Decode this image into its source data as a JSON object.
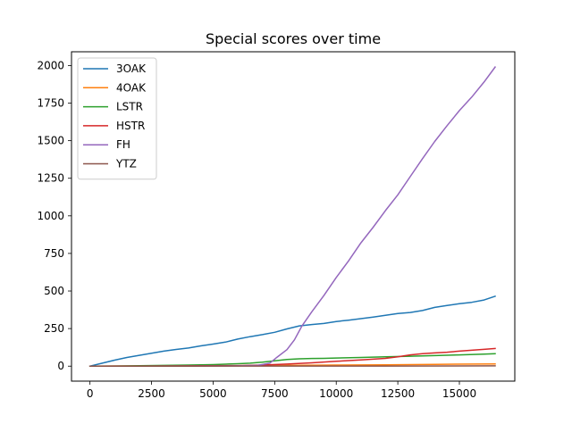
{
  "chart_data": {
    "type": "line",
    "title": "Special scores over time",
    "xlabel": "",
    "ylabel": "",
    "xlim": [
      -750,
      17250
    ],
    "ylim": [
      -99.6,
      2091.6
    ],
    "xticks": [
      0,
      2500,
      5000,
      7500,
      10000,
      12500,
      15000
    ],
    "xtick_labels": [
      "0",
      "2500",
      "5000",
      "7500",
      "10000",
      "12500",
      "15000"
    ],
    "yticks": [
      0,
      250,
      500,
      750,
      1000,
      1250,
      1500,
      1750,
      2000
    ],
    "ytick_labels": [
      "0",
      "250",
      "500",
      "750",
      "1000",
      "1250",
      "1500",
      "1750",
      "2000"
    ],
    "grid": false,
    "legend_position": "upper-left",
    "series": [
      {
        "name": "3OAK",
        "color": "#1f77b4",
        "x": [
          0,
          500,
          1000,
          1500,
          2000,
          2500,
          3000,
          3500,
          4000,
          4500,
          5000,
          5500,
          6000,
          6500,
          7000,
          7500,
          8000,
          8500,
          9000,
          9500,
          10000,
          10500,
          11000,
          11500,
          12000,
          12500,
          13000,
          13500,
          14000,
          14500,
          15000,
          15500,
          16000,
          16450
        ],
        "values": [
          0,
          20,
          40,
          58,
          72,
          86,
          100,
          111,
          121,
          135,
          147,
          160,
          180,
          196,
          210,
          225,
          248,
          268,
          277,
          284,
          297,
          306,
          316,
          327,
          338,
          350,
          357,
          370,
          391,
          404,
          415,
          425,
          440,
          465
        ]
      },
      {
        "name": "4OAK",
        "color": "#ff7f0e",
        "x": [
          0,
          2000,
          4000,
          6000,
          8000,
          10000,
          12000,
          14000,
          16450
        ],
        "values": [
          0,
          1,
          2,
          3,
          5,
          7,
          9,
          12,
          15
        ]
      },
      {
        "name": "LSTR",
        "color": "#2ca02c",
        "x": [
          0,
          1000,
          2000,
          3000,
          4000,
          5000,
          5500,
          6000,
          6500,
          7000,
          7500,
          8000,
          8500,
          9000,
          9500,
          10000,
          11000,
          12000,
          13000,
          14000,
          15000,
          16000,
          16450
        ],
        "values": [
          0,
          1,
          3,
          5,
          7,
          10,
          13,
          16,
          20,
          26,
          35,
          44,
          49,
          51,
          52,
          54,
          58,
          62,
          66,
          70,
          75,
          80,
          83
        ]
      },
      {
        "name": "HSTR",
        "color": "#d62728",
        "x": [
          0,
          2000,
          4000,
          6000,
          7000,
          8000,
          9000,
          10000,
          11000,
          12000,
          12500,
          13000,
          13500,
          14000,
          14500,
          15000,
          15500,
          16000,
          16450
        ],
        "values": [
          0,
          1,
          2,
          4,
          7,
          14,
          22,
          32,
          42,
          52,
          62,
          75,
          83,
          88,
          93,
          100,
          106,
          112,
          118
        ]
      },
      {
        "name": "FH",
        "color": "#9467bd",
        "x": [
          0,
          2000,
          4000,
          6000,
          6800,
          7300,
          7600,
          8000,
          8300,
          8600,
          9000,
          9500,
          10000,
          10500,
          11000,
          11500,
          12000,
          12500,
          13000,
          13500,
          14000,
          14500,
          15000,
          15500,
          16000,
          16450
        ],
        "values": [
          0,
          0,
          1,
          2,
          5,
          20,
          60,
          110,
          175,
          265,
          360,
          470,
          590,
          700,
          820,
          925,
          1035,
          1140,
          1260,
          1380,
          1495,
          1600,
          1700,
          1790,
          1890,
          1990
        ]
      },
      {
        "name": "YTZ",
        "color": "#8c564b",
        "x": [
          0,
          4000,
          8000,
          12000,
          16450
        ],
        "values": [
          0,
          0,
          1,
          1,
          2
        ]
      }
    ]
  }
}
